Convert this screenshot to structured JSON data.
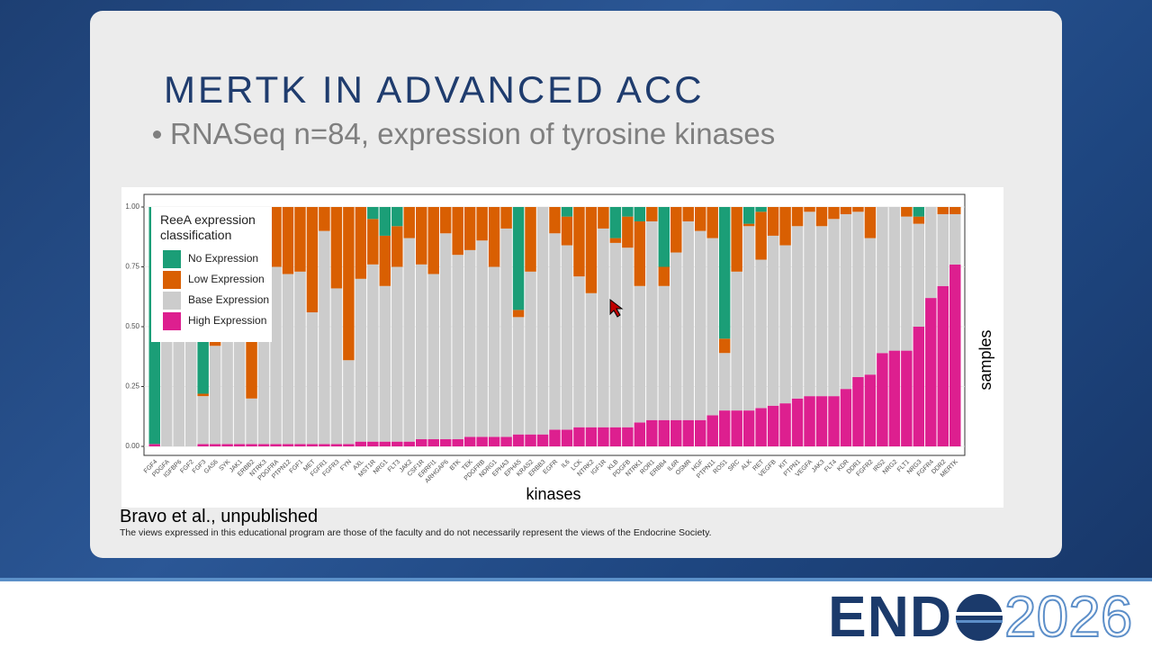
{
  "slide": {
    "title": "MERTK IN ADVANCED ACC",
    "bullet": "RNASeq n=84, expression of tyrosine kinases",
    "citation": "Bravo et al., unpublished",
    "disclaimer": "The views expressed in this educational program are those of the faculty and do not necessarily represent the views of the Endocrine Society."
  },
  "logo": {
    "brand": "END",
    "year": "2026"
  },
  "chart_data": {
    "type": "stacked_bar",
    "x_label": "kinases",
    "y_label": "samples",
    "legend_title": "ReeA expression classification",
    "legend": "top-left",
    "categories": [
      "FGF4",
      "PDGFA",
      "IGFBP6",
      "FGF2",
      "FGF3",
      "GAS6",
      "SYK",
      "JAK1",
      "ERBB2",
      "NTRK3",
      "PDGFRA",
      "PTPN12",
      "FGF1",
      "MET",
      "FGFR1",
      "FGFR3",
      "FYN",
      "AXL",
      "MST1R",
      "NRG1",
      "FLT3",
      "JAK2",
      "CSF1R",
      "ERRFI1",
      "ARHGAP6",
      "BTK",
      "TEK",
      "PDGFRB",
      "NDRG1",
      "EPHA3",
      "EPHA5",
      "KRAS2",
      "ERBB3",
      "EGFR",
      "IL6",
      "LCK",
      "NTRK2",
      "IGF1R",
      "KLB",
      "PDGFB",
      "NTRK1",
      "ROR1",
      "ERBB4",
      "IL6R",
      "OSMR",
      "HGF",
      "PTPN11",
      "ROS1",
      "SRC",
      "ALK",
      "RET",
      "VEGFB",
      "KIT",
      "PTPN1",
      "VEGFA",
      "JAK3",
      "FLT4",
      "KDR",
      "DDR1",
      "FGFR2",
      "IRS2",
      "NRG2",
      "FLT1",
      "NRG3",
      "FGFR4",
      "DDR2",
      "MERTK"
    ],
    "series": [
      {
        "name": "No Expression",
        "color": "#1b9e77",
        "values": [
          0.99,
          0,
          0,
          0,
          0.78,
          0,
          0,
          0,
          0,
          0,
          0,
          0,
          0,
          0,
          0,
          0,
          0,
          0,
          0.05,
          0.12,
          0.08,
          0,
          0,
          0,
          0,
          0,
          0,
          0,
          0,
          0,
          0.43,
          0,
          0,
          0,
          0.04,
          0,
          0,
          0,
          0.13,
          0.04,
          0.06,
          0,
          0.25,
          0,
          0,
          0,
          0,
          0.55,
          0,
          0.07,
          0.02,
          0,
          0,
          0,
          0,
          0,
          0,
          0,
          0,
          0,
          0,
          0,
          0,
          0.04,
          0,
          0,
          0
        ]
      },
      {
        "name": "Low Expression",
        "color": "#d95f02",
        "values": [
          0,
          0,
          0,
          0,
          0.01,
          0.58,
          0,
          0,
          0.8,
          0,
          0.25,
          0.28,
          0.27,
          0.44,
          0.1,
          0.34,
          0.64,
          0.3,
          0.19,
          0.21,
          0.17,
          0.13,
          0.24,
          0.28,
          0.11,
          0.2,
          0.18,
          0.14,
          0.25,
          0.09,
          0.03,
          0.27,
          0,
          0.11,
          0.12,
          0.29,
          0.36,
          0.09,
          0.02,
          0.13,
          0.27,
          0.06,
          0.08,
          0.19,
          0.06,
          0.1,
          0.13,
          0.06,
          0.27,
          0.01,
          0.2,
          0.12,
          0.16,
          0.08,
          0.02,
          0.08,
          0.05,
          0.03,
          0.02,
          0.13,
          0,
          0,
          0.04,
          0.03,
          0,
          0.03,
          0.03
        ]
      },
      {
        "name": "Base Expression",
        "color": "#cccccc",
        "values": [
          0,
          1,
          1,
          1,
          0.2,
          0.41,
          0.99,
          0.99,
          0.19,
          0.99,
          0.74,
          0.71,
          0.72,
          0.55,
          0.89,
          0.65,
          0.35,
          0.68,
          0.74,
          0.65,
          0.73,
          0.85,
          0.73,
          0.69,
          0.86,
          0.77,
          0.78,
          0.82,
          0.71,
          0.87,
          0.49,
          0.68,
          0.95,
          0.82,
          0.77,
          0.63,
          0.56,
          0.83,
          0.77,
          0.75,
          0.57,
          0.83,
          0.56,
          0.7,
          0.83,
          0.79,
          0.74,
          0.24,
          0.58,
          0.77,
          0.62,
          0.71,
          0.66,
          0.72,
          0.77,
          0.71,
          0.74,
          0.73,
          0.69,
          0.57,
          0.61,
          0.6,
          0.56,
          0.43,
          0.38,
          0.3,
          0.21
        ]
      },
      {
        "name": "High Expression",
        "color": "#dd1f8f",
        "values": [
          0.01,
          0,
          0,
          0,
          0.01,
          0.01,
          0.01,
          0.01,
          0.01,
          0.01,
          0.01,
          0.01,
          0.01,
          0.01,
          0.01,
          0.01,
          0.01,
          0.02,
          0.02,
          0.02,
          0.02,
          0.02,
          0.03,
          0.03,
          0.03,
          0.03,
          0.04,
          0.04,
          0.04,
          0.04,
          0.05,
          0.05,
          0.05,
          0.07,
          0.07,
          0.08,
          0.08,
          0.08,
          0.08,
          0.08,
          0.1,
          0.11,
          0.11,
          0.11,
          0.11,
          0.11,
          0.13,
          0.15,
          0.15,
          0.15,
          0.16,
          0.17,
          0.18,
          0.2,
          0.21,
          0.21,
          0.21,
          0.24,
          0.29,
          0.3,
          0.39,
          0.4,
          0.4,
          0.5,
          0.62,
          0.67,
          0.76
        ]
      }
    ],
    "ylim": [
      0,
      1
    ],
    "yticks": [
      {
        "value": 0,
        "label": "0.00"
      },
      0.25,
      {
        "value": 0.5,
        "label": "0.50"
      },
      0.75,
      {
        "value": 1,
        "label": "1.00"
      }
    ]
  }
}
